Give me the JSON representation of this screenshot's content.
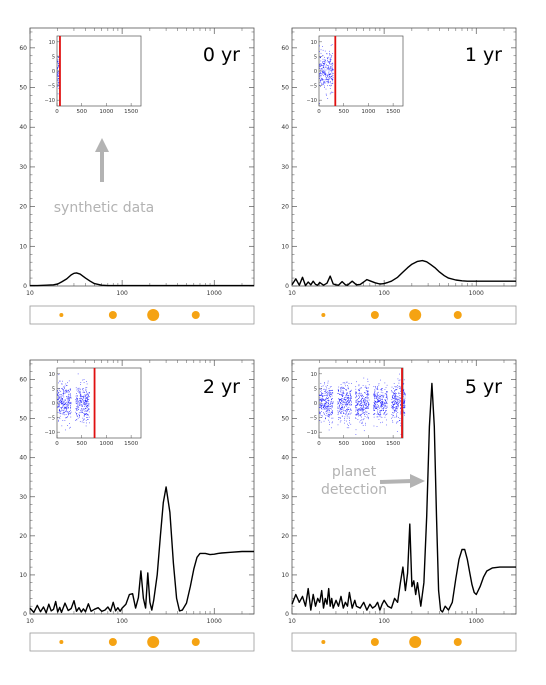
{
  "chart_data": [
    {
      "type": "line",
      "title": "0 yr",
      "xscale": "log",
      "xlim": [
        10,
        2700
      ],
      "ylim": [
        0,
        65
      ],
      "xticks": [
        {
          "v": 10,
          "label": "10"
        },
        {
          "v": 100,
          "label": "100"
        },
        {
          "v": 1000,
          "label": "1000"
        }
      ],
      "yticks": [
        0,
        10,
        20,
        30,
        40,
        50,
        60
      ],
      "series": [
        {
          "x": [
            10,
            12,
            15,
            18,
            20,
            22,
            25,
            28,
            30,
            32,
            35,
            40,
            45,
            50,
            60,
            70,
            80,
            100,
            150,
            200,
            300,
            500,
            1000,
            2000,
            2700
          ],
          "y": [
            0.1,
            0.1,
            0.2,
            0.3,
            0.5,
            1.0,
            1.8,
            2.8,
            3.2,
            3.3,
            3.0,
            2.0,
            1.2,
            0.6,
            0.2,
            0.1,
            0.1,
            0.1,
            0.1,
            0.1,
            0.1,
            0.1,
            0.1,
            0.1,
            0.1
          ]
        }
      ],
      "inset": {
        "xlim": [
          0,
          1700
        ],
        "ylim": [
          -12,
          12
        ],
        "xticks": [
          0,
          500,
          1000,
          1500
        ],
        "yticks": [
          10,
          5,
          0,
          -5,
          -10
        ],
        "yticklabels": [
          "10",
          "5",
          "0",
          "−5",
          "−10"
        ],
        "clusters": [
          [
            0,
            45
          ]
        ],
        "redline": 60
      },
      "annotation": {
        "text": "synthetic data",
        "arrow": "up",
        "color": "#b3b3b3"
      },
      "strip": {
        "dots": [
          {
            "x": 14,
            "r": 2
          },
          {
            "x": 37,
            "r": 4
          },
          {
            "x": 55,
            "r": 6
          },
          {
            "x": 74,
            "r": 4
          }
        ]
      }
    },
    {
      "type": "line",
      "title": "1 yr",
      "xscale": "log",
      "xlim": [
        10,
        2700
      ],
      "ylim": [
        0,
        65
      ],
      "xticks": [
        {
          "v": 10,
          "label": "10"
        },
        {
          "v": 100,
          "label": "100"
        },
        {
          "v": 1000,
          "label": "1000"
        }
      ],
      "yticks": [
        0,
        10,
        20,
        30,
        40,
        50,
        60
      ],
      "series": [
        {
          "x": [
            10,
            11,
            12,
            13,
            14,
            15,
            16,
            17,
            18,
            19,
            20,
            22,
            24,
            26,
            28,
            30,
            32,
            35,
            38,
            40,
            45,
            50,
            55,
            60,
            65,
            70,
            80,
            90,
            100,
            110,
            120,
            140,
            160,
            180,
            200,
            230,
            260,
            290,
            320,
            360,
            400,
            450,
            500,
            600,
            700,
            800,
            1000,
            1500,
            2000,
            2700
          ],
          "y": [
            0.3,
            1.8,
            0.2,
            2.2,
            0.1,
            1.0,
            0.3,
            1.2,
            0.4,
            0.2,
            0.9,
            0.2,
            0.7,
            2.5,
            0.5,
            0.3,
            0.2,
            1.1,
            0.3,
            0.2,
            1.2,
            0.3,
            0.4,
            1.0,
            1.6,
            1.3,
            0.8,
            0.5,
            0.6,
            0.9,
            1.2,
            2.2,
            3.5,
            4.6,
            5.5,
            6.2,
            6.4,
            6.1,
            5.4,
            4.5,
            3.5,
            2.6,
            2.0,
            1.5,
            1.3,
            1.2,
            1.2,
            1.2,
            1.2,
            1.2
          ]
        }
      ],
      "inset": {
        "xlim": [
          0,
          1700
        ],
        "ylim": [
          -12,
          12
        ],
        "xticks": [
          0,
          500,
          1000,
          1500
        ],
        "yticks": [
          10,
          5,
          0,
          -5,
          -10
        ],
        "yticklabels": [
          "10",
          "5",
          "0",
          "−5",
          "−10"
        ],
        "clusters": [
          [
            0,
            280
          ]
        ],
        "redline": 330
      },
      "strip": {
        "dots": [
          {
            "x": 14,
            "r": 2
          },
          {
            "x": 37,
            "r": 4
          },
          {
            "x": 55,
            "r": 6
          },
          {
            "x": 74,
            "r": 4
          }
        ]
      }
    },
    {
      "type": "line",
      "title": "2 yr",
      "xscale": "log",
      "xlim": [
        10,
        2700
      ],
      "ylim": [
        0,
        65
      ],
      "xticks": [
        {
          "v": 10,
          "label": "10"
        },
        {
          "v": 100,
          "label": "100"
        },
        {
          "v": 1000,
          "label": "1000"
        }
      ],
      "yticks": [
        0,
        10,
        20,
        30,
        40,
        50,
        60
      ],
      "series": [
        {
          "x": [
            10,
            11,
            12,
            13,
            14,
            15,
            16,
            17,
            18,
            19,
            20,
            21,
            22,
            24,
            26,
            28,
            30,
            32,
            34,
            36,
            38,
            40,
            43,
            46,
            50,
            55,
            60,
            65,
            70,
            75,
            80,
            85,
            90,
            95,
            100,
            110,
            120,
            130,
            140,
            150,
            160,
            170,
            180,
            190,
            200,
            210,
            220,
            240,
            260,
            280,
            300,
            330,
            360,
            390,
            420,
            450,
            500,
            550,
            600,
            650,
            700,
            800,
            900,
            1000,
            1100,
            1200,
            1500,
            2000,
            2700
          ],
          "y": [
            1.5,
            0.4,
            2.2,
            0.6,
            1.8,
            0.3,
            2.5,
            0.8,
            1.2,
            3.2,
            0.5,
            1.7,
            0.4,
            2.8,
            0.9,
            1.4,
            3.4,
            0.7,
            1.6,
            0.5,
            1.3,
            0.6,
            2.6,
            0.7,
            1.2,
            1.6,
            0.7,
            1.0,
            1.8,
            0.7,
            3.0,
            0.8,
            1.6,
            0.7,
            1.5,
            2.5,
            5.0,
            5.2,
            1.5,
            4.2,
            11.0,
            4.0,
            1.5,
            10.5,
            3.0,
            1.0,
            3.5,
            10.0,
            20.0,
            28.5,
            32.5,
            26.0,
            13.0,
            4.0,
            0.8,
            1.0,
            2.8,
            7.0,
            11.5,
            14.5,
            15.5,
            15.5,
            15.2,
            15.3,
            15.5,
            15.6,
            15.8,
            16.0,
            16.0
          ]
        }
      ],
      "inset": {
        "xlim": [
          0,
          1700
        ],
        "ylim": [
          -12,
          12
        ],
        "xticks": [
          0,
          500,
          1000,
          1500
        ],
        "yticks": [
          10,
          5,
          0,
          -5,
          -10
        ],
        "yticklabels": [
          "10",
          "5",
          "0",
          "−5",
          "−10"
        ],
        "clusters": [
          [
            0,
            280
          ],
          [
            370,
            650
          ]
        ],
        "redline": 760
      },
      "strip": {
        "dots": [
          {
            "x": 14,
            "r": 2
          },
          {
            "x": 37,
            "r": 4
          },
          {
            "x": 55,
            "r": 6
          },
          {
            "x": 74,
            "r": 4
          }
        ]
      }
    },
    {
      "type": "line",
      "title": "5 yr",
      "xscale": "log",
      "xlim": [
        10,
        2700
      ],
      "ylim": [
        0,
        65
      ],
      "xticks": [
        {
          "v": 10,
          "label": "10"
        },
        {
          "v": 100,
          "label": "100"
        },
        {
          "v": 1000,
          "label": "1000"
        }
      ],
      "yticks": [
        0,
        10,
        20,
        30,
        40,
        50,
        60
      ],
      "series": [
        {
          "x": [
            10,
            11,
            12,
            13,
            14,
            15,
            16,
            17,
            18,
            19,
            20,
            21,
            22,
            23,
            24,
            25,
            26,
            27,
            28,
            30,
            32,
            34,
            36,
            38,
            40,
            42,
            45,
            48,
            50,
            55,
            60,
            65,
            70,
            75,
            80,
            85,
            90,
            95,
            100,
            110,
            120,
            130,
            140,
            150,
            160,
            170,
            180,
            190,
            200,
            210,
            220,
            230,
            250,
            270,
            290,
            310,
            330,
            350,
            370,
            390,
            410,
            430,
            460,
            500,
            550,
            600,
            650,
            700,
            750,
            800,
            850,
            900,
            950,
            1000,
            1100,
            1200,
            1300,
            1500,
            1800,
            2200,
            2700
          ],
          "y": [
            2.5,
            5.0,
            3.0,
            4.5,
            2.0,
            6.5,
            1.0,
            5.0,
            2.0,
            4.0,
            3.0,
            6.0,
            1.5,
            4.0,
            2.5,
            6.5,
            2.0,
            4.0,
            1.5,
            3.5,
            2.0,
            4.5,
            1.5,
            3.0,
            2.0,
            5.5,
            1.5,
            3.5,
            2.0,
            1.5,
            3.0,
            1.0,
            2.5,
            1.5,
            2.0,
            3.0,
            1.0,
            2.5,
            3.5,
            2.0,
            1.5,
            4.0,
            3.0,
            8.0,
            12.0,
            6.0,
            10.5,
            23.0,
            7.0,
            8.5,
            5.0,
            8.0,
            2.0,
            8.0,
            25.0,
            48.0,
            59.0,
            48.0,
            25.0,
            6.0,
            1.0,
            0.5,
            2.0,
            1.0,
            3.0,
            9.0,
            14.0,
            16.5,
            16.5,
            14.0,
            10.5,
            7.5,
            5.5,
            5.0,
            7.0,
            9.5,
            11.0,
            11.8,
            12.0,
            12.0,
            12.0
          ]
        }
      ],
      "inset": {
        "xlim": [
          0,
          1700
        ],
        "ylim": [
          -12,
          12
        ],
        "xticks": [
          0,
          500,
          1000,
          1500
        ],
        "yticks": [
          10,
          5,
          0,
          -5,
          -10
        ],
        "yticklabels": [
          "10",
          "5",
          "0",
          "−5",
          "−10"
        ],
        "clusters": [
          [
            0,
            280
          ],
          [
            370,
            650
          ],
          [
            730,
            1010
          ],
          [
            1095,
            1375
          ],
          [
            1460,
            1740
          ]
        ],
        "redline": 1680
      },
      "annotation": {
        "text_lines": [
          "planet",
          "detection"
        ],
        "arrow": "right",
        "color": "#b3b3b3"
      },
      "strip": {
        "dots": [
          {
            "x": 14,
            "r": 2
          },
          {
            "x": 37,
            "r": 4
          },
          {
            "x": 55,
            "r": 6
          },
          {
            "x": 74,
            "r": 4
          }
        ]
      }
    }
  ],
  "colors": {
    "line": "#000000",
    "scatter": "#1a1aff",
    "redline": "#e01010",
    "annotation": "#b3b3b3",
    "dot": "#f5a313",
    "frame": "#999999",
    "axis": "#555555"
  }
}
